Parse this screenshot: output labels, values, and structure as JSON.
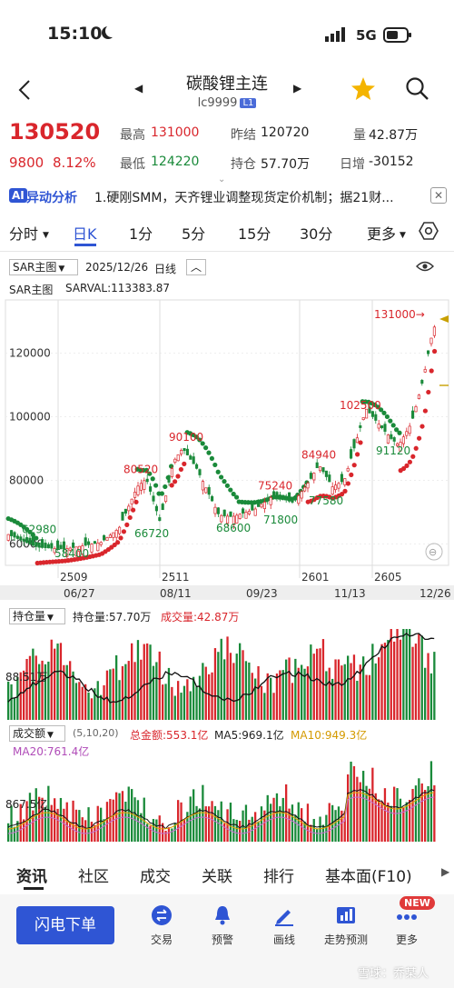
{
  "status": {
    "time": "15:10",
    "network": "5G"
  },
  "header": {
    "title": "碳酸锂主连",
    "code": "lc9999",
    "code_badge": "L1"
  },
  "quote": {
    "price": "130520",
    "change": "9800",
    "change_pct": "8.12%",
    "high_label": "最高",
    "high": "131000",
    "low_label": "最低",
    "low": "124220",
    "prev_settle_label": "昨结",
    "prev_settle": "120720",
    "open_int_label": "持仓",
    "open_int": "57.70万",
    "volume_label": "量",
    "volume": "42.87万",
    "daily_inc_label": "日增",
    "daily_inc": "-30152"
  },
  "ai_bar": {
    "tag": "AI",
    "title": "异动分析",
    "text": "1.硬刚SMM，天齐锂业调整现货定价机制；据21财..."
  },
  "period_tabs": [
    "分时",
    "日K",
    "1分",
    "5分",
    "15分",
    "30分",
    "更多"
  ],
  "chart_header": {
    "indicator": "SAR主图",
    "date": "2025/12/26",
    "line_type": "日线"
  },
  "sar": {
    "label": "SAR主图",
    "value_label": "SARVAL:113383.87"
  },
  "price_labels": {
    "p131000": "131000→",
    "p102500": "102500",
    "p91120": "91120",
    "p90100": "90100",
    "p84940": "84940",
    "p80520": "80520",
    "p75240": "75240",
    "p77580": "77580",
    "p71800": "71800",
    "p68600": "68600",
    "p66720": "66720",
    "p62980": "62980",
    "p58400": "58400"
  },
  "y_ticks": [
    "120000",
    "100000",
    "80000",
    "60000"
  ],
  "contract_ticks": [
    "2509",
    "2511",
    "2601",
    "2605"
  ],
  "date_ticks": [
    "06/27",
    "08/11",
    "09/23",
    "11/13",
    "12/26"
  ],
  "oi_panel": {
    "name": "持仓量",
    "oi": "持仓量:57.70万",
    "vol": "成交量:42.87万",
    "axis": "88.51万"
  },
  "amt_panel": {
    "name": "成交额",
    "params": "(5,10,20)",
    "total": "总金额:553.1亿",
    "ma5": "MA5:969.1亿",
    "ma10": "MA10:949.3亿",
    "ma20": "MA20:761.4亿",
    "axis": "867.5亿"
  },
  "bottom_tabs": [
    "资讯",
    "社区",
    "成交",
    "关联",
    "排行",
    "基本面(F10)"
  ],
  "actions": {
    "flash_order": "闪电下单",
    "trade": "交易",
    "alert": "预警",
    "draw": "画线",
    "trend": "走势预测",
    "more": "更多",
    "new_badge": "NEW"
  },
  "watermark": "雪球：乔某人",
  "colors": {
    "up": "#d9262c",
    "down": "#1a8a3a",
    "accent": "#2f55d4",
    "star": "#f4b400"
  },
  "chart_data": {
    "type": "candlestick",
    "title": "碳酸锂主连 日K",
    "ylim": [
      55000,
      135000
    ],
    "key_points": [
      {
        "label": "62980",
        "x": "06/27",
        "value": 62980
      },
      {
        "label": "58400",
        "value": 58400
      },
      {
        "label": "80520",
        "value": 80520
      },
      {
        "label": "66720",
        "value": 66720
      },
      {
        "label": "90100",
        "x": "08/11",
        "value": 90100
      },
      {
        "label": "68600",
        "value": 68600
      },
      {
        "label": "75240",
        "value": 75240
      },
      {
        "label": "71800",
        "x": "09/23",
        "value": 71800
      },
      {
        "label": "84940",
        "value": 84940
      },
      {
        "label": "77580",
        "value": 77580
      },
      {
        "label": "102500",
        "x": "11/13",
        "value": 102500
      },
      {
        "label": "91120",
        "value": 91120
      },
      {
        "label": "131000",
        "x": "12/26",
        "value": 131000
      }
    ]
  }
}
